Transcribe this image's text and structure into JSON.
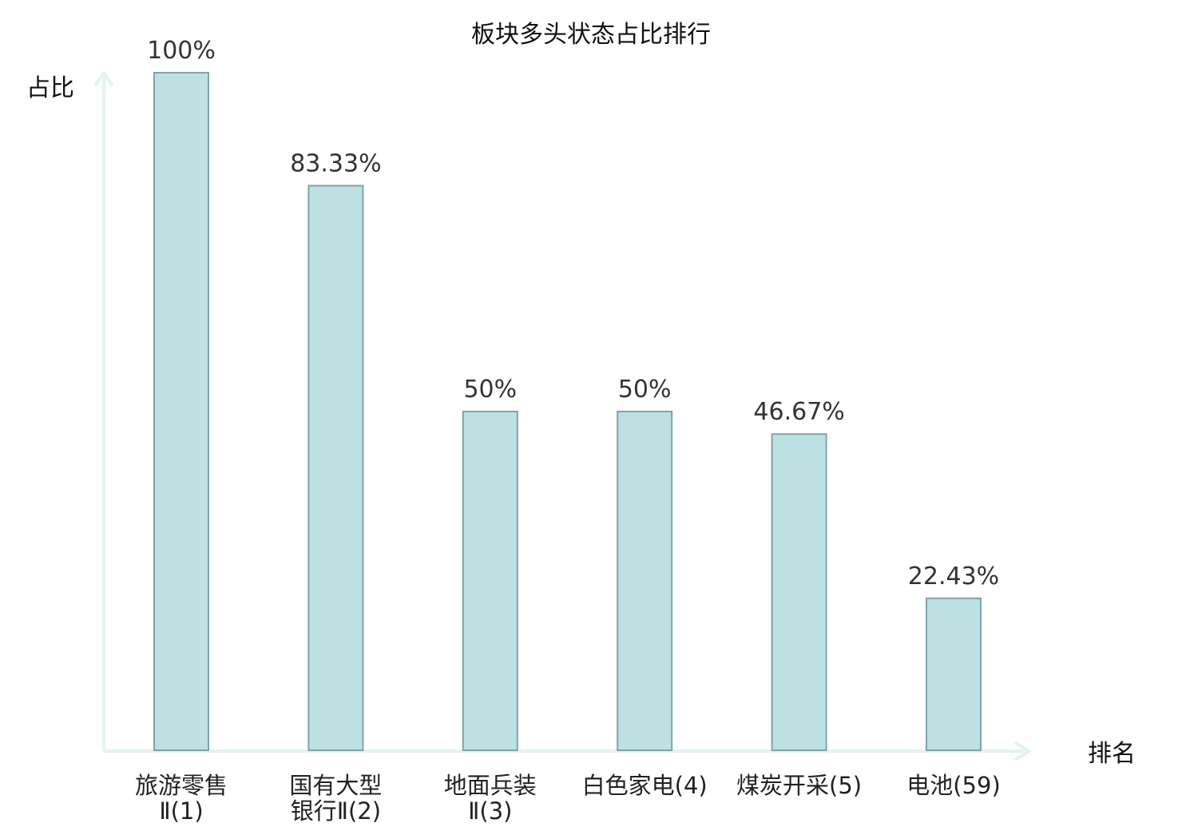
{
  "chart_data": {
    "type": "bar",
    "title": "板块多头状态占比排行",
    "xlabel": "排名",
    "ylabel": "占比",
    "ylim": [
      0,
      100
    ],
    "grid": false,
    "categories": [
      [
        "旅游零售",
        "Ⅱ(1)"
      ],
      [
        "国有大型",
        "银行Ⅱ(2)"
      ],
      [
        "地面兵装",
        "Ⅱ(3)"
      ],
      [
        "白色家电(4)"
      ],
      [
        "煤炭开采(5)"
      ],
      [
        "电池(59)"
      ]
    ],
    "values": [
      100,
      83.33,
      50,
      50,
      46.67,
      22.43
    ],
    "value_labels": [
      "100%",
      "83.33%",
      "50%",
      "50%",
      "46.67%",
      "22.43%"
    ],
    "highlight_index": 5,
    "colors": {
      "bar_fill": "#bde0e2",
      "bar_stroke": "#7fa4a7",
      "axis": "#e3f3f0",
      "label": "#333333",
      "highlight_label": "#e02020"
    }
  }
}
